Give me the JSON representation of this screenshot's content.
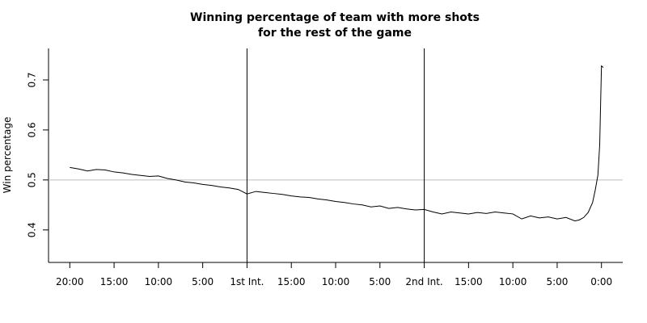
{
  "chart_data": {
    "type": "line",
    "title": [
      "Winning percentage of team with more shots",
      "for the rest of the game"
    ],
    "y_label": "Win percentage",
    "x": [
      0,
      1,
      2,
      3,
      4,
      5,
      6,
      7,
      8,
      9,
      10,
      11,
      12,
      13,
      14,
      15,
      16,
      17,
      18,
      19,
      20,
      21,
      22,
      23,
      24,
      25,
      26,
      27,
      28,
      29,
      30,
      31,
      32,
      33,
      34,
      35,
      36,
      37,
      38,
      39,
      40,
      41,
      42,
      43,
      44,
      45,
      46,
      47,
      48,
      49,
      50,
      51,
      52,
      53,
      54,
      55,
      56,
      57,
      57.5,
      58,
      58.5,
      59,
      59.3,
      59.6,
      59.8,
      59.9,
      60,
      60.2
    ],
    "series": [
      {
        "color": "#000000",
        "values": [
          0.525,
          0.522,
          0.518,
          0.521,
          0.52,
          0.516,
          0.514,
          0.511,
          0.509,
          0.507,
          0.508,
          0.503,
          0.5,
          0.496,
          0.494,
          0.491,
          0.489,
          0.486,
          0.484,
          0.481,
          0.472,
          0.477,
          0.475,
          0.473,
          0.471,
          0.468,
          0.466,
          0.465,
          0.462,
          0.46,
          0.457,
          0.455,
          0.452,
          0.45,
          0.446,
          0.448,
          0.443,
          0.445,
          0.442,
          0.44,
          0.441,
          0.436,
          0.432,
          0.436,
          0.434,
          0.432,
          0.435,
          0.433,
          0.436,
          0.434,
          0.432,
          0.422,
          0.428,
          0.424,
          0.426,
          0.422,
          0.425,
          0.418,
          0.42,
          0.425,
          0.435,
          0.455,
          0.48,
          0.51,
          0.57,
          0.65,
          0.728,
          0.725
        ]
      }
    ],
    "xlim": [
      -2.4,
      62.4
    ],
    "xticks": [
      {
        "value": 0,
        "label": "20:00"
      },
      {
        "value": 5,
        "label": "15:00"
      },
      {
        "value": 10,
        "label": "10:00"
      },
      {
        "value": 15,
        "label": "5:00"
      },
      {
        "value": 20,
        "label": "1st Int."
      },
      {
        "value": 25,
        "label": "15:00"
      },
      {
        "value": 30,
        "label": "10:00"
      },
      {
        "value": 35,
        "label": "5:00"
      },
      {
        "value": 40,
        "label": "2nd Int."
      },
      {
        "value": 45,
        "label": "15:00"
      },
      {
        "value": 50,
        "label": "10:00"
      },
      {
        "value": 55,
        "label": "5:00"
      },
      {
        "value": 60,
        "label": "0:00"
      }
    ],
    "ylim": [
      0.335,
      0.763
    ],
    "yticks": [
      0.4,
      0.5,
      0.6,
      0.7
    ],
    "hline": {
      "value": 0.5,
      "color": "#bebebe"
    },
    "vlines": [
      20,
      40
    ]
  }
}
